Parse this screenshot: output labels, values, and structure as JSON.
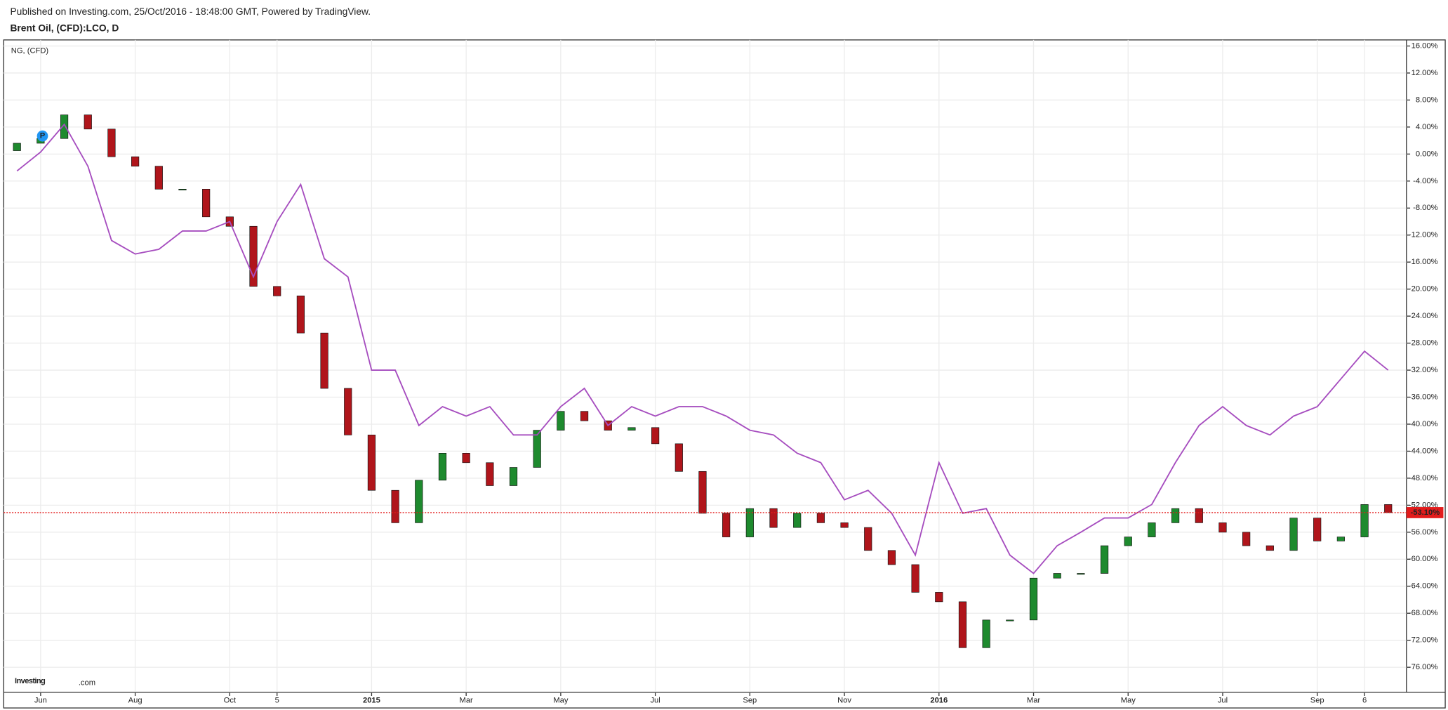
{
  "header": {
    "published": "Published on Investing.com, 25/Oct/2016 - 18:48:00 GMT, Powered by TradingView.",
    "instrument": "Brent Oil, (CFD):LCO, D"
  },
  "logo": {
    "brand": "Investing",
    "suffix": ".com"
  },
  "marker": "P",
  "chart_data": {
    "type": "candlestick-line",
    "categories": [
      null,
      "Jun",
      null,
      null,
      null,
      "Aug",
      null,
      null,
      null,
      "Oct",
      null,
      "5",
      null,
      null,
      null,
      "2015",
      null,
      null,
      null,
      "Mar",
      null,
      null,
      null,
      "May",
      null,
      null,
      null,
      "Jul",
      null,
      null,
      null,
      "Sep",
      null,
      null,
      null,
      "Nov",
      null,
      null,
      null,
      "2016",
      null,
      null,
      null,
      "Mar",
      null,
      null,
      null,
      "May",
      null,
      null,
      null,
      "Jul",
      null,
      null,
      null,
      "Sep",
      null,
      "6",
      null
    ],
    "series": [
      {
        "name": "Brent Oil, (CFD):LCO, D",
        "type": "candlestick",
        "up_color": "#1e8a2e",
        "down_color": "#b0151b",
        "open": [
          0.5,
          1.6,
          2.3,
          5.8,
          3.7,
          -0.4,
          -1.8,
          -5.2,
          -5.2,
          -9.3,
          -10.7,
          -19.6,
          -21,
          -26.5,
          -34.7,
          -41.6,
          -49.8,
          -54.6,
          -48.3,
          -44.3,
          -45.7,
          -49.1,
          -46.4,
          -40.9,
          -38.1,
          -39.5,
          -40.9,
          -40.5,
          -42.9,
          -47,
          -53.2,
          -56.7,
          -52.5,
          -55.3,
          -53.2,
          -54.6,
          -55.3,
          -58.7,
          -60.8,
          -64.9,
          -66.3,
          -73.1,
          -69,
          -69,
          -62.8,
          -62.1,
          -62.1,
          -58,
          -56.7,
          -54.6,
          -52.5,
          -54.6,
          -56,
          -58,
          -58.7,
          -53.9,
          -57.3,
          -56.7,
          -51.9
        ],
        "close": [
          1.6,
          2.3,
          5.8,
          3.7,
          -0.4,
          -1.8,
          -5.2,
          -5.2,
          -9.3,
          -10.7,
          -19.6,
          -21,
          -26.5,
          -34.7,
          -41.6,
          -49.8,
          -54.6,
          -48.3,
          -44.3,
          -45.7,
          -49.1,
          -46.4,
          -40.9,
          -38.1,
          -39.5,
          -40.9,
          -40.5,
          -42.9,
          -47,
          -53.2,
          -56.7,
          -52.5,
          -55.3,
          -53.2,
          -54.6,
          -55.3,
          -58.7,
          -60.8,
          -64.9,
          -66.3,
          -73.1,
          -69,
          -69,
          -62.8,
          -62.1,
          -62.1,
          -58,
          -56.7,
          -54.6,
          -52.5,
          -54.6,
          -56,
          -58,
          -58.7,
          -53.9,
          -57.3,
          -56.7,
          -51.9,
          -53.1
        ]
      },
      {
        "name": "NG,  (CFD)",
        "type": "line",
        "color": "#a64dbf",
        "values": [
          -2.5,
          0.3,
          4.4,
          -1.8,
          -12.8,
          -14.8,
          -14.1,
          -11.4,
          -11.4,
          -10,
          -18.2,
          -10,
          -4.5,
          -15.5,
          -18.2,
          -32,
          -32,
          -40.2,
          -37.4,
          -38.8,
          -37.4,
          -41.6,
          -41.6,
          -37.4,
          -34.7,
          -40.2,
          -37.4,
          -38.8,
          -37.4,
          -37.4,
          -38.8,
          -40.9,
          -41.6,
          -44.3,
          -45.7,
          -51.2,
          -49.8,
          -53.2,
          -59.4,
          -45.7,
          -53.2,
          -52.5,
          -59.4,
          -62.1,
          -58,
          -56,
          -53.9,
          -53.9,
          -51.9,
          -45.7,
          -40.2,
          -37.4,
          -40.2,
          -41.6,
          -38.8,
          -37.4,
          -33.3,
          -29.2,
          -32
        ]
      }
    ],
    "ylim": [
      -79.7,
      16.9
    ],
    "yticks": [
      {
        "value": 16,
        "label": "16.00%"
      },
      {
        "value": 12,
        "label": "12.00%"
      },
      {
        "value": 8,
        "label": "8.00%"
      },
      {
        "value": 4,
        "label": "4.00%"
      },
      {
        "value": 0,
        "label": "0.00%"
      },
      {
        "value": -4,
        "label": "-4.00%"
      },
      {
        "value": -8,
        "label": "-8.00%"
      },
      {
        "value": -12,
        "label": "-12.00%"
      },
      {
        "value": -16,
        "label": "-16.00%"
      },
      {
        "value": -20,
        "label": "-20.00%"
      },
      {
        "value": -24,
        "label": "-24.00%"
      },
      {
        "value": -28,
        "label": "-28.00%"
      },
      {
        "value": -32,
        "label": "-32.00%"
      },
      {
        "value": -36,
        "label": "-36.00%"
      },
      {
        "value": -40,
        "label": "-40.00%"
      },
      {
        "value": -44,
        "label": "-44.00%"
      },
      {
        "value": -48,
        "label": "-48.00%"
      },
      {
        "value": -52,
        "label": "-52.00%"
      },
      {
        "value": -56,
        "label": "-56.00%"
      },
      {
        "value": -60,
        "label": "-60.00%"
      },
      {
        "value": -64,
        "label": "-64.00%"
      },
      {
        "value": -68,
        "label": "-68.00%"
      },
      {
        "value": -72,
        "label": "-72.00%"
      },
      {
        "value": -76,
        "label": "-76.00%"
      }
    ],
    "last_value": {
      "value": -53.1,
      "label": "-53.10%",
      "color": "#e31b1b"
    },
    "grid": true
  }
}
